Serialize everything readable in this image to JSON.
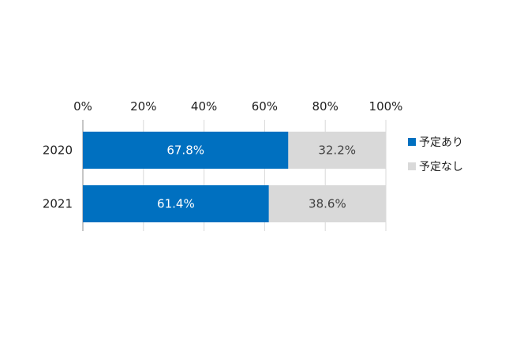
{
  "chart_data": {
    "type": "bar",
    "orientation": "horizontal",
    "stacked": "percent",
    "categories": [
      "2020",
      "2021"
    ],
    "series": [
      {
        "name": "予定あり",
        "values": [
          67.8,
          61.4
        ],
        "labels": [
          "67.8%",
          "61.4%"
        ],
        "color": "#0070c0",
        "label_color": "#ffffff"
      },
      {
        "name": "予定なし",
        "values": [
          32.2,
          38.6
        ],
        "labels": [
          "32.2%",
          "38.6%"
        ],
        "color": "#d9d9d9",
        "label_color": "#404040"
      }
    ],
    "axis": {
      "range": [
        0,
        100
      ],
      "ticks": [
        0,
        20,
        40,
        60,
        80,
        100
      ],
      "tick_labels": [
        "0%",
        "20%",
        "40%",
        "60%",
        "80%",
        "100%"
      ],
      "position": "top"
    },
    "title": "",
    "legend": {
      "position": "right",
      "entries": [
        "予定あり",
        "予定なし"
      ]
    }
  }
}
